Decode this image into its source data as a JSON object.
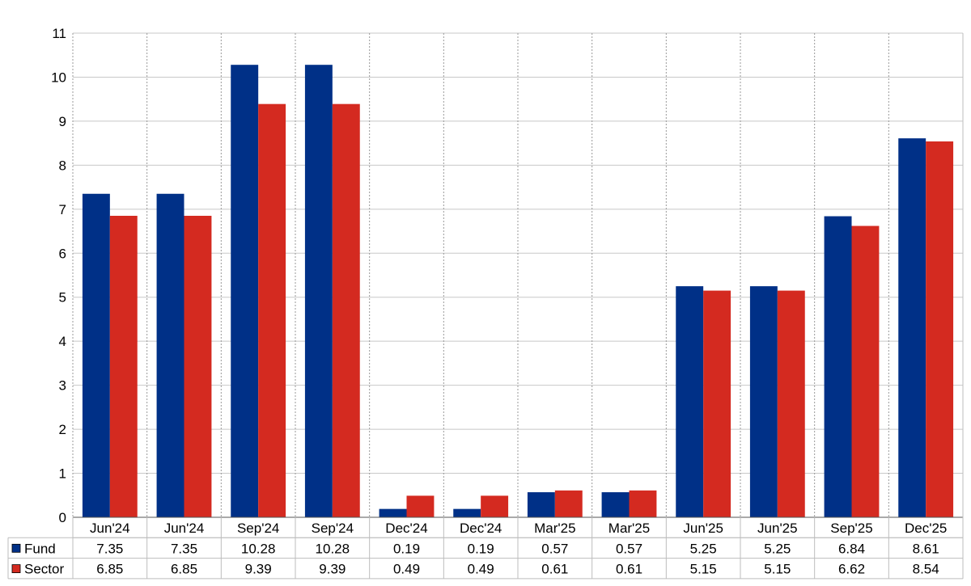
{
  "chart_data": {
    "type": "bar",
    "categories": [
      "Jun'24",
      "Jun'24",
      "Sep'24",
      "Sep'24",
      "Dec'24",
      "Dec'24",
      "Mar'25",
      "Mar'25",
      "Jun'25",
      "Jun'25",
      "Sep'25",
      "Dec'25"
    ],
    "series": [
      {
        "name": "Fund",
        "color": "#003087",
        "values": [
          7.35,
          7.35,
          10.28,
          10.28,
          0.19,
          0.19,
          0.57,
          0.57,
          5.25,
          5.25,
          6.84,
          8.61
        ],
        "labels": [
          "7.35",
          "7.35",
          "10.28",
          "10.28",
          "0.19",
          "0.19",
          "0.57",
          "0.57",
          "5.25",
          "5.25",
          "6.84",
          "8.61"
        ]
      },
      {
        "name": "Sector",
        "color": "#d42a20",
        "values": [
          6.85,
          6.85,
          9.39,
          9.39,
          0.49,
          0.49,
          0.61,
          0.61,
          5.15,
          5.15,
          6.62,
          8.54
        ],
        "labels": [
          "6.85",
          "6.85",
          "9.39",
          "9.39",
          "0.49",
          "0.49",
          "0.61",
          "0.61",
          "5.15",
          "5.15",
          "6.62",
          "8.54"
        ]
      }
    ],
    "ylim": [
      0,
      11
    ],
    "yticks": [
      "0",
      "1",
      "2",
      "3",
      "4",
      "5",
      "6",
      "7",
      "8",
      "9",
      "10",
      "11"
    ],
    "grid": true,
    "legend": "data-table-left"
  }
}
